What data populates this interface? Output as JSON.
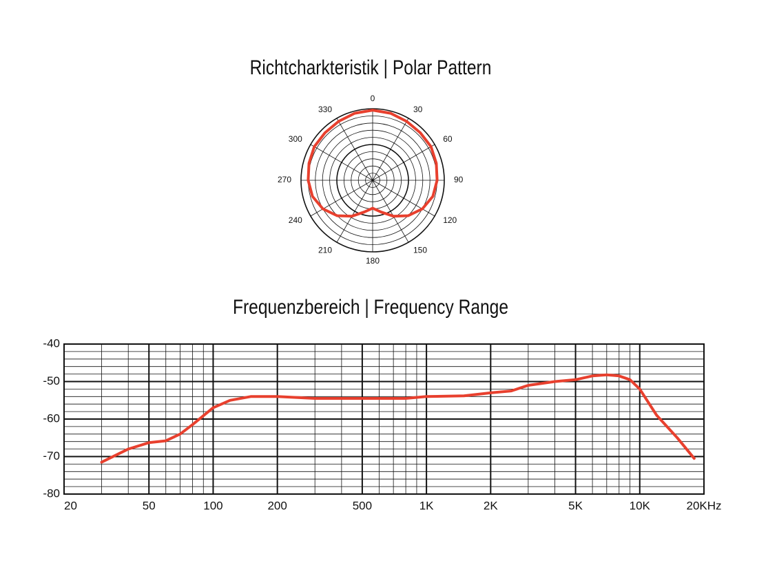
{
  "chart_data": [
    {
      "type": "polar",
      "title": "Richtcharkteristik | Polar Pattern",
      "angles": [
        0,
        15,
        30,
        45,
        60,
        75,
        90,
        105,
        120,
        135,
        150,
        165,
        180,
        195,
        210,
        225,
        240,
        255,
        270,
        285,
        300,
        315,
        330,
        345
      ],
      "values": [
        0.98,
        0.97,
        0.95,
        0.94,
        0.94,
        0.92,
        0.9,
        0.87,
        0.8,
        0.7,
        0.58,
        0.46,
        0.39,
        0.46,
        0.58,
        0.7,
        0.8,
        0.87,
        0.9,
        0.92,
        0.94,
        0.94,
        0.95,
        0.97
      ],
      "rlim": [
        0,
        1
      ],
      "angle_ticks": [
        0,
        30,
        60,
        90,
        120,
        150,
        180,
        210,
        240,
        270,
        300,
        330
      ],
      "color": "#e8402e",
      "grid": true
    },
    {
      "type": "line",
      "title": "Frequenzbereich | Frequency Range",
      "x": [
        30,
        40,
        50,
        60,
        70,
        80,
        100,
        120,
        150,
        200,
        300,
        500,
        800,
        1000,
        1500,
        2000,
        2500,
        3000,
        4000,
        5000,
        6000,
        7000,
        8000,
        9000,
        10000,
        12000,
        15000,
        18000
      ],
      "values": [
        -71.5,
        -68,
        -66.3,
        -65.8,
        -64,
        -61.5,
        -57,
        -55,
        -54,
        -54,
        -54.5,
        -54.5,
        -54.5,
        -54,
        -53.8,
        -53,
        -52.5,
        -51,
        -50,
        -49.5,
        -48.5,
        -48.2,
        -48.5,
        -49.5,
        -52,
        -59,
        -65,
        -70.5
      ],
      "color": "#e8402e",
      "xscale": "log",
      "grid": true,
      "xlim": [
        20,
        20000
      ],
      "ylim": [
        -80,
        -40
      ],
      "xticks": [
        20,
        50,
        100,
        200,
        500,
        {
          "value": 1000,
          "label": "1K"
        },
        {
          "value": 2000,
          "label": "2K"
        },
        {
          "value": 5000,
          "label": "5K"
        },
        {
          "value": 10000,
          "label": "10K"
        },
        {
          "value": 20000,
          "label": "20KHz"
        }
      ],
      "yticks": [
        -40,
        -50,
        -60,
        -70,
        -80
      ]
    }
  ]
}
